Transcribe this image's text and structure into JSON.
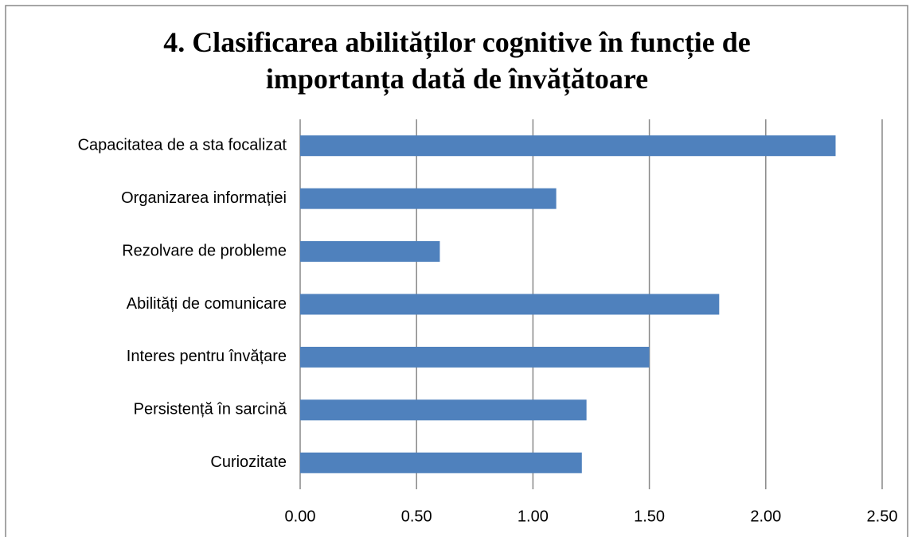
{
  "chart_data": {
    "type": "bar",
    "orientation": "horizontal",
    "title": "4. Clasificarea abilităților cognitive în funcție de importanța dată de învățătoare",
    "categories": [
      "Capacitatea de a sta focalizat",
      "Organizarea informației",
      "Rezolvare de probleme",
      "Abilități de comunicare",
      "Interes pentru învățare",
      "Persistență în sarcină",
      "Curiozitate"
    ],
    "values": [
      2.3,
      1.1,
      0.6,
      1.8,
      1.5,
      1.23,
      1.21
    ],
    "color": "#4f81bd",
    "xlim": [
      0,
      2.5
    ],
    "xticks": [
      {
        "value": 0,
        "label": "0.00"
      },
      {
        "value": 0.5,
        "label": "0.50"
      },
      {
        "value": 1,
        "label": "1.00"
      },
      {
        "value": 1.5,
        "label": "1.50"
      },
      {
        "value": 2,
        "label": "2.00"
      },
      {
        "value": 2.5,
        "label": "2.50"
      }
    ],
    "grid": true
  }
}
